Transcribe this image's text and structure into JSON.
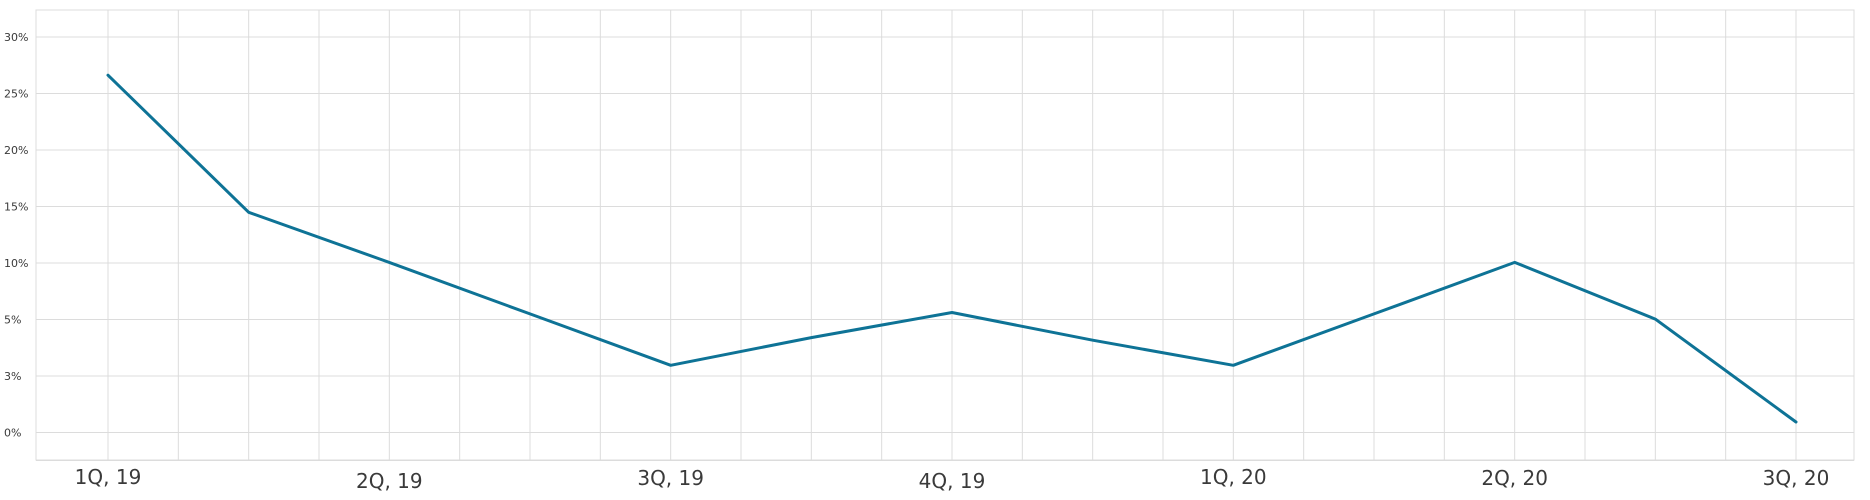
{
  "chart_data": {
    "type": "line",
    "title": "",
    "xlabel": "",
    "ylabel": "",
    "categories": [
      "1Q, 19",
      "",
      "2Q, 19",
      "",
      "3Q, 19",
      "",
      "4Q, 19",
      "",
      "1Q, 20",
      "",
      "2Q, 20",
      "",
      "3Q, 20"
    ],
    "y_tick_labels": [
      "0%",
      "3%",
      "5%",
      "10%",
      "15%",
      "20%",
      "25%",
      "30%"
    ],
    "ylim": [
      0,
      30
    ],
    "grid": true,
    "legend": "none",
    "colors": {
      "line": "#0e7396",
      "grid": "#dcdcdc",
      "text": "#3a3a3a"
    },
    "series": [
      {
        "values": [
          27.1,
          16.7,
          12.9,
          9.0,
          5.1,
          7.2,
          9.1,
          7.0,
          5.1,
          9.0,
          12.9,
          8.6,
          0.8
        ]
      }
    ]
  }
}
